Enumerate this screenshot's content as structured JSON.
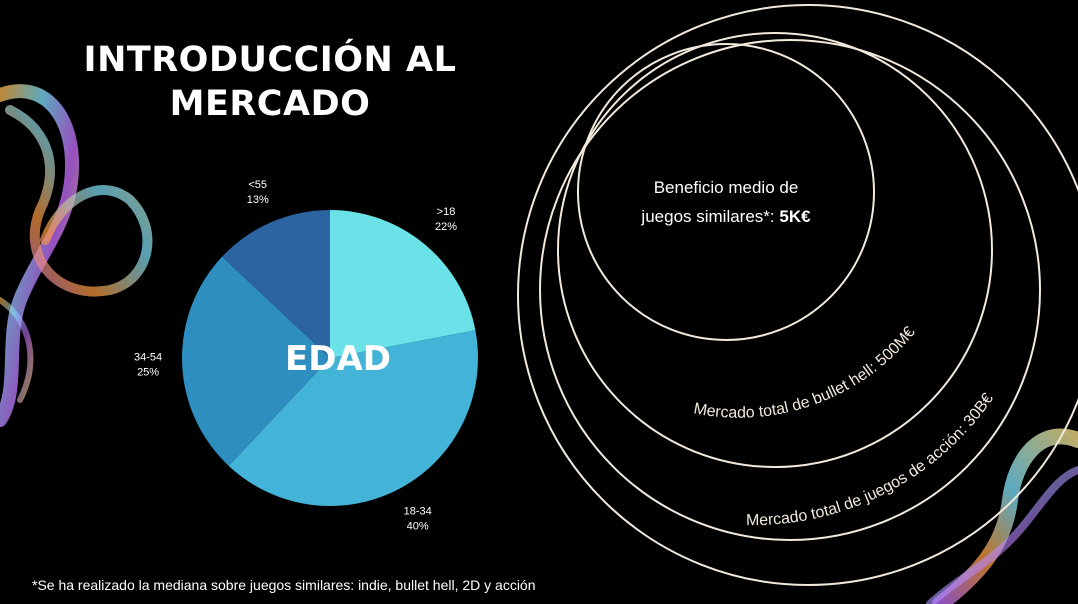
{
  "slide": {
    "title_line1": "INTRODUCCIÓN AL",
    "title_line2": "MERCADO",
    "footnote": "*Se ha realizado la mediana sobre juegos similares: indie, bullet hell, 2D y acción"
  },
  "chart_data": [
    {
      "type": "pie",
      "center_label": "EDAD",
      "start": "12 o'clock, clockwise",
      "slices": [
        {
          "label": ">18",
          "value": 22,
          "value_label": "22%",
          "color": "#6ae2e8"
        },
        {
          "label": "18-34",
          "value": 40,
          "value_label": "40%",
          "color": "#44b3d8"
        },
        {
          "label": "34-54",
          "value": 25,
          "value_label": "25%",
          "color": "#2e8ebf"
        },
        {
          "label": "<55",
          "value": 13,
          "value_label": "13%",
          "color": "#2b64a0"
        }
      ]
    }
  ],
  "nested_circles": {
    "inner": {
      "text_line1": "Beneficio medio de",
      "text_line2_prefix": "juegos similares*: ",
      "text_line2_value": "5K€"
    },
    "middle": {
      "text": "Mercado total de bullet hell: 500M€"
    },
    "outer": {
      "text": "Mercado total de juegos de acción: 30B€"
    },
    "stroke_color": "#f2e8dc"
  },
  "decoration": {
    "name": "iridescent-ribbon",
    "colors": [
      "#ffb347",
      "#7de3ff",
      "#c86bff",
      "#ffe58a"
    ]
  }
}
